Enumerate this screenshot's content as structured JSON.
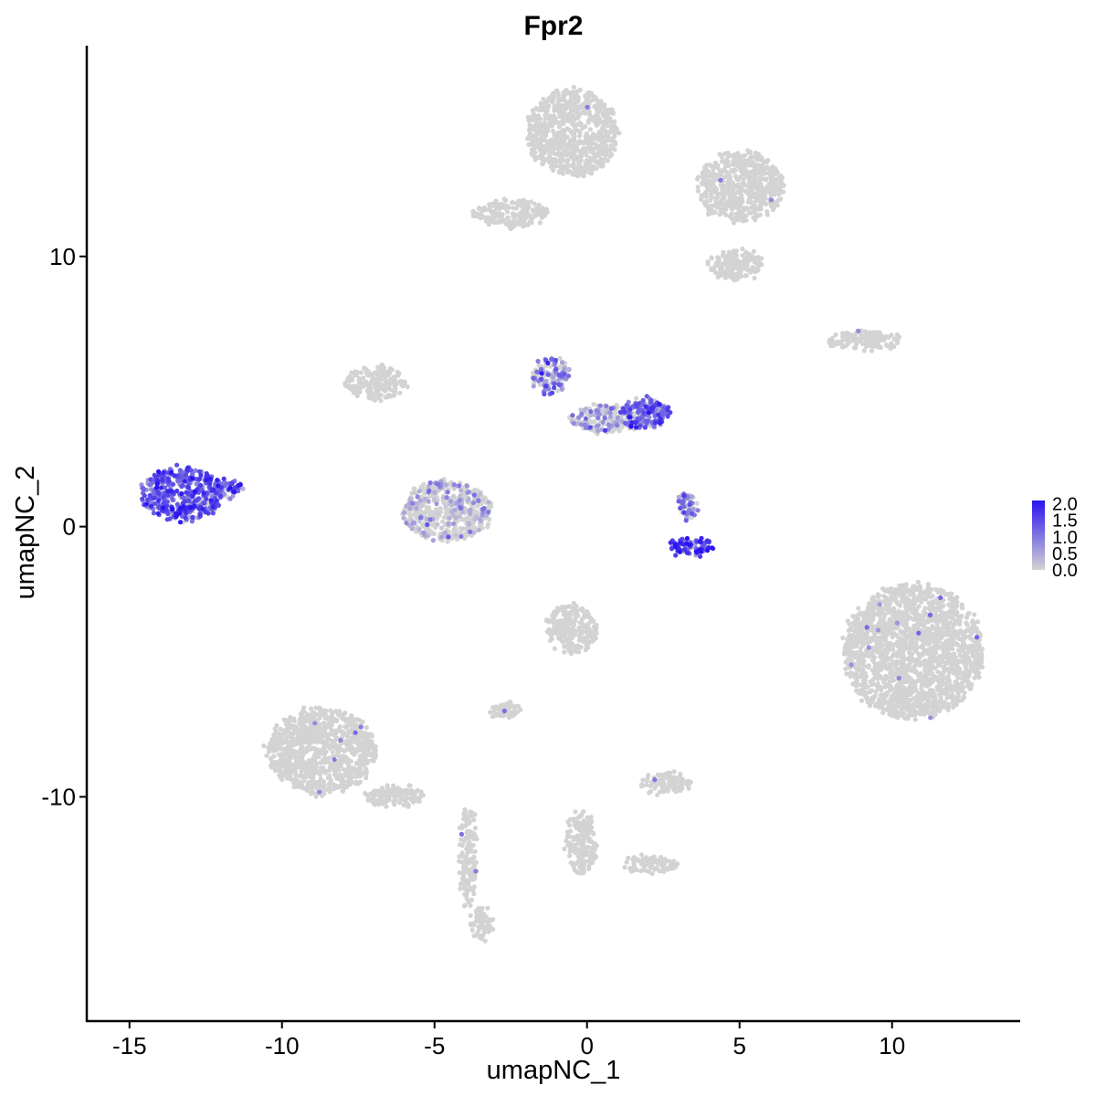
{
  "chart_data": {
    "type": "scatter",
    "title": "Fpr2",
    "xlabel": "umapNC_1",
    "ylabel": "umapNC_2",
    "xlim": [
      -16.4,
      14.2
    ],
    "ylim": [
      -18.3,
      17.8
    ],
    "x_ticks": [
      -15,
      -10,
      -5,
      0,
      5,
      10
    ],
    "x_tick_labels": [
      "-15",
      "-10",
      "-5",
      "0",
      "5",
      "10"
    ],
    "y_ticks": [
      -10,
      0,
      10
    ],
    "y_tick_labels": [
      "-10",
      "0",
      "10"
    ],
    "grid": false,
    "legend": {
      "position": "right",
      "type": "colorbar",
      "min": 0.0,
      "max": 2.1,
      "ticks": [
        0.0,
        0.5,
        1.0,
        1.5,
        2.0
      ],
      "tick_labels": [
        "0.0",
        "0.5",
        "1.0",
        "1.5",
        "2.0"
      ],
      "low_color": "#d3d3d3",
      "high_color": "#2a14f0"
    },
    "point_color_low": "#d3d3d3",
    "point_color_high": "#2a14f0",
    "clusters": [
      {
        "id": "c1",
        "blob": [
          -13.3,
          1.2,
          1.3,
          1.0
        ],
        "expression": 1.3
      },
      {
        "id": "c2",
        "blob": [
          -11.8,
          1.4,
          0.45,
          0.35
        ],
        "expression": 1.1
      },
      {
        "id": "c3",
        "blob": [
          -0.5,
          14.6,
          1.5,
          1.6
        ],
        "expression": 0.0
      },
      {
        "id": "c4",
        "blob": [
          5.0,
          12.6,
          1.4,
          1.3
        ],
        "expression": 0.0
      },
      {
        "id": "c5",
        "blob": [
          -2.5,
          11.6,
          1.2,
          0.5
        ],
        "expression": 0.0
      },
      {
        "id": "c6",
        "blob": [
          4.9,
          9.7,
          0.9,
          0.55
        ],
        "expression": 0.0
      },
      {
        "id": "c7",
        "blob": [
          -1.2,
          5.6,
          0.6,
          0.7
        ],
        "expression": 0.8
      },
      {
        "id": "c8",
        "blob": [
          1.9,
          4.2,
          0.8,
          0.6
        ],
        "expression": 1.2
      },
      {
        "id": "c9",
        "blob": [
          0.6,
          4.0,
          1.2,
          0.5
        ],
        "expression": 0.4
      },
      {
        "id": "c10",
        "blob": [
          -6.9,
          5.3,
          1.0,
          0.6
        ],
        "expression": 0.0
      },
      {
        "id": "c11",
        "blob": [
          -4.6,
          0.6,
          1.5,
          1.1
        ],
        "expression": 0.2
      },
      {
        "id": "c12",
        "blob": [
          3.4,
          -0.7,
          0.7,
          0.35
        ],
        "expression": 1.6
      },
      {
        "id": "c13",
        "blob": [
          3.3,
          0.8,
          0.3,
          0.5
        ],
        "expression": 0.7
      },
      {
        "id": "c14",
        "blob": [
          10.7,
          -4.6,
          2.3,
          2.5
        ],
        "expression": 0.0
      },
      {
        "id": "c15",
        "blob": [
          -8.7,
          -8.3,
          1.8,
          1.6
        ],
        "expression": 0.0
      },
      {
        "id": "c16",
        "blob": [
          -0.5,
          -3.8,
          0.8,
          0.9
        ],
        "expression": 0.0
      },
      {
        "id": "c17",
        "blob": [
          2.6,
          -9.5,
          0.8,
          0.4
        ],
        "expression": 0.0
      },
      {
        "id": "c18",
        "blob": [
          9.1,
          6.9,
          1.2,
          0.35
        ],
        "expression": 0.0
      },
      {
        "id": "c19",
        "blob": [
          -2.7,
          -6.8,
          0.5,
          0.3
        ],
        "expression": 0.0
      },
      {
        "id": "c20",
        "blob": [
          -3.5,
          -14.7,
          0.35,
          0.6
        ],
        "expression": 0.0
      },
      {
        "id": "c21",
        "blob": [
          -3.9,
          -12.2,
          0.25,
          1.8
        ],
        "expression": 0.0
      },
      {
        "id": "c22",
        "blob": [
          -0.2,
          -11.7,
          0.5,
          1.2
        ],
        "expression": 0.0
      },
      {
        "id": "c23",
        "blob": [
          2.1,
          -12.5,
          0.9,
          0.3
        ],
        "expression": 0.0
      },
      {
        "id": "c24",
        "blob": [
          -6.3,
          -10.0,
          1.0,
          0.4
        ],
        "expression": 0.0
      }
    ]
  }
}
